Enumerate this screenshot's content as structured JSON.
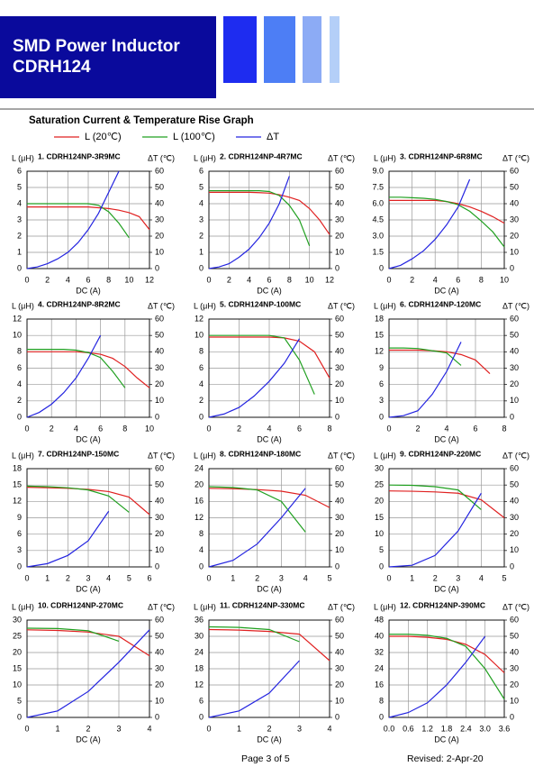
{
  "header": {
    "title": "SMD Power Inductor",
    "subtitle": "CDRH124"
  },
  "section_title": "Saturation Current & Temperature Rise  Graph",
  "legend": [
    {
      "name": "L (20℃)",
      "color": "#e02020"
    },
    {
      "name": "L (100℃)",
      "color": "#20a020"
    },
    {
      "name": "ΔT",
      "color": "#2424e0"
    }
  ],
  "footer": {
    "page": "Page 3 of 5",
    "revised": "Revised: 2-Apr-20"
  },
  "chart_data": [
    {
      "type": "line",
      "title": "1. CDRH124NP-3R9MC",
      "ylabel": "L (μH)",
      "y2label": "ΔT (℃)",
      "xlabel": "DC (A)",
      "x": [
        0,
        1,
        2,
        3,
        4,
        5,
        6,
        7,
        8,
        9,
        10,
        11,
        12
      ],
      "xlim": [
        0,
        12
      ],
      "xticks": [
        0,
        2,
        4,
        6,
        8,
        10,
        12
      ],
      "ylim": [
        0,
        6
      ],
      "yticks": [
        0,
        1,
        2,
        3,
        4,
        5,
        6
      ],
      "y2lim": [
        0,
        60
      ],
      "y2ticks": [
        0,
        10,
        20,
        30,
        40,
        50,
        60
      ],
      "grid": true,
      "series": [
        {
          "color": "#e02020",
          "values": [
            3.8,
            3.8,
            3.8,
            3.8,
            3.8,
            3.8,
            3.8,
            3.75,
            3.7,
            3.6,
            3.45,
            3.2,
            2.4
          ]
        },
        {
          "color": "#20a020",
          "values": [
            4.0,
            4.0,
            4.0,
            4.0,
            4.0,
            4.0,
            4.0,
            3.9,
            3.5,
            2.8,
            1.9,
            null,
            null
          ]
        },
        {
          "color": "#2424e0",
          "axis": "y2",
          "values": [
            0,
            1,
            3,
            6,
            10,
            16,
            24,
            34,
            47,
            60,
            null,
            null,
            null
          ]
        }
      ]
    },
    {
      "type": "line",
      "title": "2. CDRH124NP-4R7MC",
      "ylabel": "L (μH)",
      "y2label": "ΔT (℃)",
      "xlabel": "DC (A)",
      "x": [
        0,
        1,
        2,
        3,
        4,
        5,
        6,
        7,
        8,
        9,
        10,
        11,
        12
      ],
      "xlim": [
        0,
        12
      ],
      "xticks": [
        0,
        2,
        4,
        6,
        8,
        10,
        12
      ],
      "ylim": [
        0,
        6
      ],
      "yticks": [
        0,
        1,
        2,
        3,
        4,
        5,
        6
      ],
      "y2lim": [
        0,
        60
      ],
      "y2ticks": [
        0,
        10,
        20,
        30,
        40,
        50,
        60
      ],
      "grid": true,
      "series": [
        {
          "color": "#e02020",
          "values": [
            4.7,
            4.7,
            4.7,
            4.7,
            4.7,
            4.68,
            4.65,
            4.55,
            4.4,
            4.2,
            3.7,
            3.0,
            2.1
          ]
        },
        {
          "color": "#20a020",
          "values": [
            4.8,
            4.8,
            4.8,
            4.8,
            4.8,
            4.8,
            4.75,
            4.5,
            3.9,
            3.0,
            1.4,
            null,
            null
          ]
        },
        {
          "color": "#2424e0",
          "axis": "y2",
          "values": [
            0,
            1,
            3,
            7,
            12,
            19,
            28,
            40,
            57,
            null,
            null,
            null,
            null
          ]
        }
      ]
    },
    {
      "type": "line",
      "title": "3. CDRH124NP-6R8MC",
      "ylabel": "L (μH)",
      "y2label": "ΔT (℃)",
      "xlabel": "DC (A)",
      "x": [
        0,
        1,
        2,
        3,
        4,
        5,
        6,
        7,
        8,
        9,
        10
      ],
      "xlim": [
        0,
        10
      ],
      "xticks": [
        0,
        2,
        4,
        6,
        8,
        10
      ],
      "ylim": [
        0,
        9
      ],
      "yticks": [
        0,
        1.5,
        {
          "value": 3,
          "label": "3.0"
        },
        4.5,
        {
          "value": 6,
          "label": "6.0"
        },
        7.5,
        {
          "value": 9,
          "label": "9.0"
        }
      ],
      "y2lim": [
        0,
        60
      ],
      "y2ticks": [
        0,
        10,
        20,
        30,
        40,
        50,
        60
      ],
      "grid": true,
      "series": [
        {
          "color": "#e02020",
          "values": [
            6.3,
            6.3,
            6.3,
            6.3,
            6.3,
            6.2,
            6.0,
            5.7,
            5.3,
            4.8,
            4.2
          ]
        },
        {
          "color": "#20a020",
          "values": [
            6.6,
            6.6,
            6.55,
            6.5,
            6.4,
            6.2,
            5.9,
            5.3,
            4.4,
            3.4,
            2.0
          ]
        },
        {
          "color": "#2424e0",
          "axis": "y2",
          "values": [
            0,
            2,
            6,
            11,
            18,
            27,
            38,
            55,
            null,
            null,
            null
          ]
        }
      ]
    },
    {
      "type": "line",
      "title": "4. CDRH124NP-8R2MC",
      "ylabel": "L (μH)",
      "y2label": "ΔT (℃)",
      "xlabel": "DC (A)",
      "x": [
        0,
        1,
        2,
        3,
        4,
        5,
        6,
        7,
        8,
        9,
        10
      ],
      "xlim": [
        0,
        10
      ],
      "xticks": [
        0,
        2,
        4,
        6,
        8,
        10
      ],
      "ylim": [
        0,
        12
      ],
      "yticks": [
        0,
        2,
        4,
        6,
        8,
        10,
        12
      ],
      "y2lim": [
        0,
        60
      ],
      "y2ticks": [
        0,
        10,
        20,
        30,
        40,
        50,
        60
      ],
      "grid": true,
      "series": [
        {
          "color": "#e02020",
          "values": [
            8.0,
            8.0,
            8.0,
            8.0,
            8.0,
            7.9,
            7.7,
            7.2,
            6.2,
            4.8,
            3.6
          ]
        },
        {
          "color": "#20a020",
          "values": [
            8.3,
            8.3,
            8.3,
            8.3,
            8.2,
            7.9,
            7.3,
            5.6,
            3.6,
            null,
            null
          ]
        },
        {
          "color": "#2424e0",
          "axis": "y2",
          "values": [
            0,
            3,
            8,
            15,
            24,
            36,
            50,
            null,
            null,
            null,
            null
          ]
        }
      ]
    },
    {
      "type": "line",
      "title": "5. CDRH124NP-100MC",
      "ylabel": "L (μH)",
      "y2label": "ΔT (℃)",
      "xlabel": "DC (A)",
      "x": [
        0,
        1,
        2,
        3,
        4,
        5,
        6,
        7,
        8
      ],
      "xlim": [
        0,
        8
      ],
      "xticks": [
        0,
        2,
        4,
        6,
        8
      ],
      "ylim": [
        0,
        12
      ],
      "yticks": [
        0,
        2,
        4,
        6,
        8,
        10,
        12
      ],
      "y2lim": [
        0,
        60
      ],
      "y2ticks": [
        0,
        10,
        20,
        30,
        40,
        50,
        60
      ],
      "grid": true,
      "series": [
        {
          "color": "#e02020",
          "values": [
            9.8,
            9.8,
            9.8,
            9.8,
            9.8,
            9.7,
            9.3,
            8.0,
            4.8
          ]
        },
        {
          "color": "#20a020",
          "values": [
            10.0,
            10.0,
            10.0,
            10.0,
            10.0,
            9.7,
            7.0,
            2.8,
            null
          ]
        },
        {
          "color": "#2424e0",
          "axis": "y2",
          "values": [
            0,
            2,
            6,
            13,
            22,
            33,
            48,
            null,
            null
          ]
        }
      ]
    },
    {
      "type": "line",
      "title": "6. CDRH124NP-120MC",
      "ylabel": "L (μH)",
      "y2label": "ΔT (℃)",
      "xlabel": "DC (A)",
      "x": [
        0,
        1,
        2,
        3,
        4,
        5,
        6,
        7,
        8
      ],
      "xlim": [
        0,
        8
      ],
      "xticks": [
        0,
        2,
        4,
        6,
        8
      ],
      "ylim": [
        0,
        18
      ],
      "yticks": [
        0,
        3,
        6,
        9,
        12,
        15,
        18
      ],
      "y2lim": [
        0,
        60
      ],
      "y2ticks": [
        0,
        10,
        20,
        30,
        40,
        50,
        60
      ],
      "grid": true,
      "series": [
        {
          "color": "#e02020",
          "values": [
            12.3,
            12.3,
            12.3,
            12.2,
            12.0,
            11.5,
            10.5,
            8.0,
            null
          ]
        },
        {
          "color": "#20a020",
          "values": [
            12.7,
            12.7,
            12.6,
            12.2,
            11.8,
            9.5,
            null,
            null,
            null
          ]
        },
        {
          "color": "#2424e0",
          "axis": "y2",
          "values": [
            0,
            1,
            4,
            14,
            28,
            46,
            null,
            null,
            null
          ]
        }
      ]
    },
    {
      "type": "line",
      "title": "7. CDRH124NP-150MC",
      "ylabel": "L (μH)",
      "y2label": "ΔT (℃)",
      "xlabel": "DC (A)",
      "x": [
        0,
        1,
        2,
        3,
        4,
        5,
        6
      ],
      "xlim": [
        0,
        6
      ],
      "xticks": [
        0,
        1,
        2,
        3,
        4,
        5,
        6
      ],
      "ylim": [
        0,
        18
      ],
      "yticks": [
        0,
        3,
        6,
        9,
        12,
        15,
        18
      ],
      "y2lim": [
        0,
        60
      ],
      "y2ticks": [
        0,
        10,
        20,
        30,
        40,
        50,
        60
      ],
      "grid": true,
      "series": [
        {
          "color": "#e02020",
          "values": [
            14.6,
            14.5,
            14.4,
            14.2,
            13.8,
            12.8,
            9.6
          ]
        },
        {
          "color": "#20a020",
          "values": [
            14.8,
            14.7,
            14.5,
            14.1,
            13.0,
            10.0,
            null
          ]
        },
        {
          "color": "#2424e0",
          "axis": "y2",
          "values": [
            0,
            2,
            7,
            16,
            34,
            null,
            null
          ]
        }
      ]
    },
    {
      "type": "line",
      "title": "8. CDRH124NP-180MC",
      "ylabel": "L (μH)",
      "y2label": "ΔT (℃)",
      "xlabel": "DC (A)",
      "x": [
        0,
        1,
        2,
        3,
        4,
        5
      ],
      "xlim": [
        0,
        5
      ],
      "xticks": [
        0,
        1,
        2,
        3,
        4,
        5
      ],
      "ylim": [
        0,
        24
      ],
      "yticks": [
        0,
        4,
        8,
        12,
        16,
        20,
        24
      ],
      "y2lim": [
        0,
        60
      ],
      "y2ticks": [
        0,
        10,
        20,
        30,
        40,
        50,
        60
      ],
      "grid": true,
      "series": [
        {
          "color": "#e02020",
          "values": [
            19.2,
            19.1,
            18.9,
            18.5,
            17.5,
            14.5
          ]
        },
        {
          "color": "#20a020",
          "values": [
            19.6,
            19.4,
            18.8,
            16.0,
            8.5,
            null
          ]
        },
        {
          "color": "#2424e0",
          "axis": "y2",
          "values": [
            0,
            4,
            14,
            30,
            48,
            null
          ]
        }
      ]
    },
    {
      "type": "line",
      "title": "9. CDRH124NP-220MC",
      "ylabel": "L (μH)",
      "y2label": "ΔT (℃)",
      "xlabel": "DC (A)",
      "x": [
        0,
        1,
        2,
        3,
        4,
        5
      ],
      "xlim": [
        0,
        5
      ],
      "xticks": [
        0,
        1,
        2,
        3,
        4,
        5
      ],
      "ylim": [
        0,
        30
      ],
      "yticks": [
        0,
        5,
        10,
        15,
        20,
        25,
        30
      ],
      "y2lim": [
        0,
        60
      ],
      "y2ticks": [
        0,
        10,
        20,
        30,
        40,
        50,
        60
      ],
      "grid": true,
      "series": [
        {
          "color": "#e02020",
          "values": [
            23.2,
            23.1,
            22.9,
            22.5,
            20.5,
            15.0
          ]
        },
        {
          "color": "#20a020",
          "values": [
            25.0,
            24.9,
            24.5,
            23.5,
            17.5,
            null
          ]
        },
        {
          "color": "#2424e0",
          "axis": "y2",
          "values": [
            0,
            1,
            7,
            22,
            45,
            null
          ]
        }
      ]
    },
    {
      "type": "line",
      "title": "10. CDRH124NP-270MC",
      "ylabel": "L (μH)",
      "y2label": "ΔT (℃)",
      "xlabel": "DC (A)",
      "x": [
        0,
        1,
        2,
        3,
        4
      ],
      "xlim": [
        0,
        4
      ],
      "xticks": [
        0,
        1,
        2,
        3,
        4
      ],
      "ylim": [
        0,
        30
      ],
      "yticks": [
        0,
        5,
        10,
        15,
        20,
        25,
        30
      ],
      "y2lim": [
        0,
        60
      ],
      "y2ticks": [
        0,
        10,
        20,
        30,
        40,
        50,
        60
      ],
      "grid": true,
      "series": [
        {
          "color": "#e02020",
          "values": [
            27.0,
            26.8,
            26.3,
            25.0,
            19.0
          ]
        },
        {
          "color": "#20a020",
          "values": [
            27.5,
            27.4,
            26.7,
            23.5,
            null
          ]
        },
        {
          "color": "#2424e0",
          "axis": "y2",
          "values": [
            0,
            4,
            16,
            34,
            54
          ]
        }
      ]
    },
    {
      "type": "line",
      "title": "11. CDRH124NP-330MC",
      "ylabel": "L (μH)",
      "y2label": "ΔT (℃)",
      "xlabel": "DC (A)",
      "x": [
        0,
        1,
        2,
        3,
        4
      ],
      "xlim": [
        0,
        4
      ],
      "xticks": [
        0,
        1,
        2,
        3,
        4
      ],
      "ylim": [
        0,
        36
      ],
      "yticks": [
        0,
        6,
        12,
        18,
        24,
        30,
        36
      ],
      "y2lim": [
        0,
        60
      ],
      "y2ticks": [
        0,
        10,
        20,
        30,
        40,
        50,
        60
      ],
      "grid": true,
      "series": [
        {
          "color": "#e02020",
          "values": [
            32.5,
            32.3,
            31.8,
            30.8,
            21.0
          ]
        },
        {
          "color": "#20a020",
          "values": [
            33.5,
            33.3,
            32.5,
            28.0,
            null
          ]
        },
        {
          "color": "#2424e0",
          "axis": "y2",
          "values": [
            0,
            4,
            15,
            35,
            null
          ]
        }
      ]
    },
    {
      "type": "line",
      "title": "12. CDRH124NP-390MC",
      "ylabel": "L (μH)",
      "y2label": "ΔT (℃)",
      "xlabel": "DC (A)",
      "x": [
        0,
        0.6,
        1.2,
        1.8,
        2.4,
        3.0,
        3.6
      ],
      "xlim": [
        0,
        3.6
      ],
      "xticks": [
        {
          "value": 0,
          "label": "0.0"
        },
        0.6,
        1.2,
        1.8,
        2.4,
        {
          "value": 3,
          "label": "3.0"
        },
        3.6
      ],
      "ylim": [
        0,
        48
      ],
      "yticks": [
        0,
        8,
        16,
        24,
        32,
        40,
        48
      ],
      "y2lim": [
        0,
        60
      ],
      "y2ticks": [
        0,
        10,
        20,
        30,
        40,
        50,
        60
      ],
      "grid": true,
      "series": [
        {
          "color": "#e02020",
          "values": [
            40,
            40,
            39.5,
            38.5,
            36,
            31,
            22
          ]
        },
        {
          "color": "#20a020",
          "values": [
            41,
            41,
            40.5,
            39,
            35,
            24,
            9
          ]
        },
        {
          "color": "#2424e0",
          "axis": "y2",
          "values": [
            0,
            3,
            9,
            20,
            34,
            50,
            null
          ]
        }
      ]
    }
  ]
}
